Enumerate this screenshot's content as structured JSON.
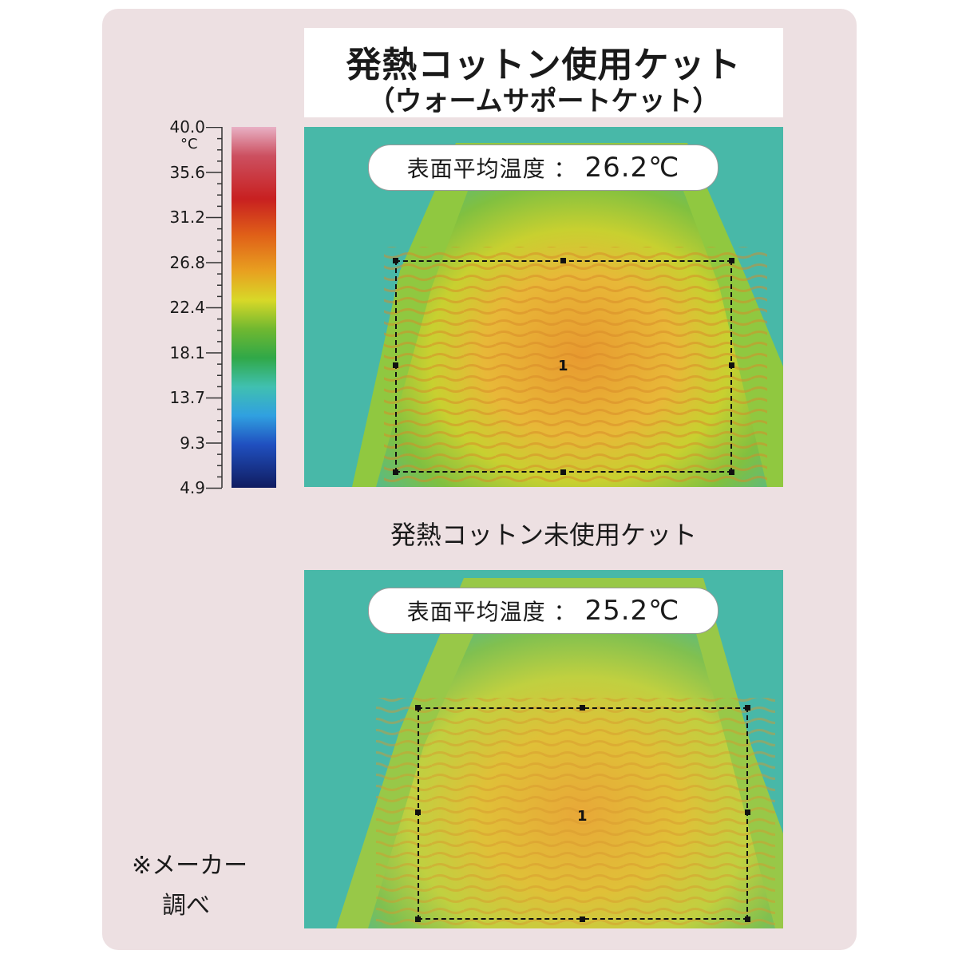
{
  "title": {
    "main": "発熱コットン使用ケット",
    "sub": "（ウォームサポートケット）"
  },
  "top_image": {
    "label_prefix": "表面平均温度 ：",
    "value": "26.2℃",
    "roi_label": "1"
  },
  "bottom_section_label": "発熱コットン未使用ケット",
  "bottom_image": {
    "label_prefix": "表面平均温度 ：",
    "value": "25.2℃",
    "roi_label": "1"
  },
  "scale": {
    "unit": "°C",
    "ticks": [
      "40.0",
      "35.6",
      "31.2",
      "26.8",
      "22.4",
      "18.1",
      "13.7",
      "9.3",
      "4.9"
    ],
    "colors": [
      "#e8a8be",
      "#c83848",
      "#c82020",
      "#e05a18",
      "#e89a20",
      "#d8d020",
      "#7ac030",
      "#2aa040",
      "#40c0a0",
      "#30a8e0",
      "#2058c0",
      "#183080",
      "#101e60"
    ]
  },
  "note": {
    "line1": "※メーカー",
    "line2": "調べ"
  }
}
